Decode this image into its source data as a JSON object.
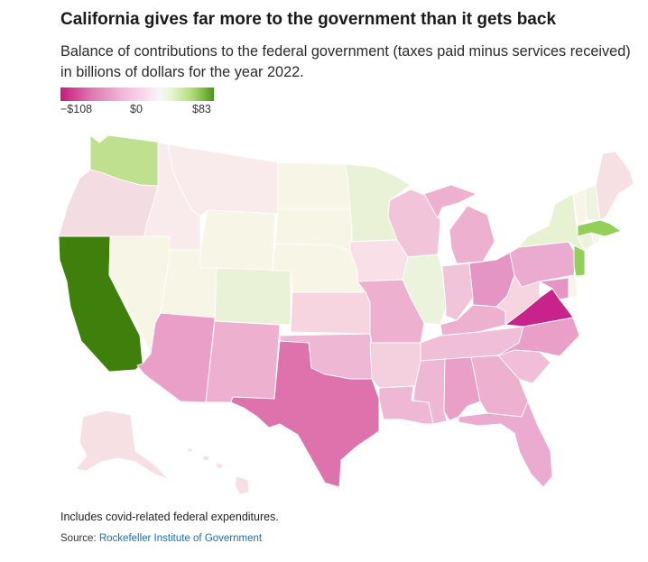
{
  "title": "California gives far more to the government than it gets back",
  "subtitle": "Balance of contributions to the federal government (taxes paid minus services received) in billions of dollars for the year 2022.",
  "legend": {
    "min_label": "−$108",
    "mid_label": "$0",
    "max_label": "$83",
    "min": -108,
    "max": 83
  },
  "note": "Includes covid-related federal expenditures.",
  "source_prefix": "Source:",
  "source_name": "Rockefeller Institute of Government",
  "colors": {
    "CA": "#3f7f0b",
    "WA": "#bfe08f",
    "MA": "#92d05a",
    "NJ": "#92d05a",
    "NY": "#e7f2d3",
    "MN": "#e9f1d6",
    "CO": "#e9f1d6",
    "IL": "#ecf3dc",
    "CT": "#ecf3dc",
    "NH": "#eef4e0",
    "WY": "#f7f5e6",
    "ND": "#f7f5e6",
    "SD": "#f7f5e6",
    "NE": "#f7f5e6",
    "NV": "#f7f5e6",
    "UT": "#f7f5e6",
    "DE": "#f7f5e6",
    "RI": "#f7f5e6",
    "VT": "#f7f5e6",
    "OR": "#f4dde2",
    "ID": "#f9ebeb",
    "MT": "#f9ebeb",
    "ME": "#f7e0e4",
    "AK": "#f7e0e4",
    "HI": "#f7e0e4",
    "IA": "#f8dfe8",
    "KS": "#f6d5e1",
    "WV": "#f6d5e1",
    "AR": "#f4d0de",
    "WI": "#f2c4d9",
    "IN": "#f2c4d9",
    "TN": "#f0bfd7",
    "SC": "#f0bfd7",
    "MS": "#eeb7d3",
    "OK": "#eeb7d3",
    "LA": "#eeb7d3",
    "KY": "#eeb0cf",
    "MI": "#eeb0cf",
    "MO": "#eeb0cf",
    "NM": "#eeb0cf",
    "GA": "#eeb0cf",
    "PA": "#ebaad0",
    "FL": "#ebaad0",
    "AL": "#e99fc7",
    "NC": "#e99fc7",
    "AZ": "#e99fc7",
    "OH": "#e595c3",
    "MD": "#e595c3",
    "TX": "#dd72ad",
    "VA": "#c8238a"
  }
}
